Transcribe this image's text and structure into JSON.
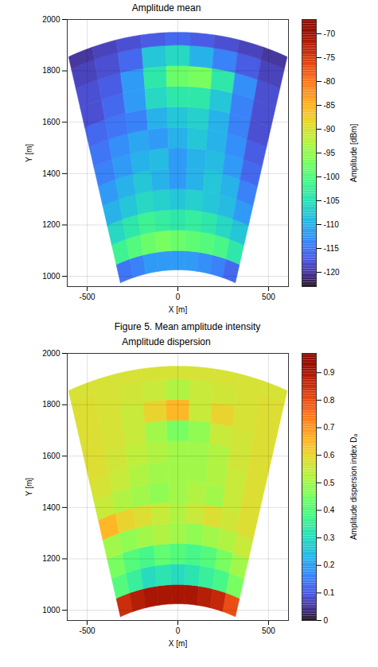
{
  "chart_data": [
    {
      "type": "heatmap",
      "title": "Amplitude mean",
      "caption": "Figure 5. Mean amplitude intensity",
      "xlabel": "X [m]",
      "ylabel": "Y [m]",
      "xlim": [
        -610,
        610
      ],
      "ylim": [
        960,
        2000
      ],
      "xticks": [
        -500,
        0,
        500
      ],
      "yticks": [
        1000,
        1200,
        1400,
        1600,
        1800,
        2000
      ],
      "grid": true,
      "color": "turbo",
      "range_edges": [
        1025,
        1100,
        1180,
        1260,
        1340,
        1420,
        1500,
        1580,
        1660,
        1740,
        1820,
        1900,
        1950
      ],
      "azimuth_edges": [
        -18,
        -14,
        -10,
        -6,
        -2,
        2,
        6,
        10,
        14,
        18
      ],
      "cells": [
        [
          -115,
          -114,
          -112,
          -112,
          -112,
          -112,
          -113,
          -114,
          -116
        ],
        [
          -102,
          -100,
          -98,
          -97,
          -98,
          -99,
          -100,
          -101,
          -104
        ],
        [
          -106,
          -104,
          -102,
          -103,
          -104,
          -103,
          -104,
          -106,
          -108
        ],
        [
          -110,
          -108,
          -106,
          -107,
          -108,
          -107,
          -108,
          -109,
          -112
        ],
        [
          -112,
          -110,
          -108,
          -110,
          -112,
          -110,
          -108,
          -110,
          -114
        ],
        [
          -114,
          -112,
          -110,
          -109,
          -112,
          -110,
          -109,
          -112,
          -116
        ],
        [
          -115,
          -113,
          -111,
          -112,
          -110,
          -108,
          -110,
          -113,
          -117
        ],
        [
          -116,
          -115,
          -114,
          -110,
          -108,
          -107,
          -110,
          -114,
          -118
        ],
        [
          -118,
          -116,
          -112,
          -106,
          -104,
          -104,
          -108,
          -114,
          -118
        ],
        [
          -118,
          -117,
          -112,
          -104,
          -98,
          -97,
          -104,
          -113,
          -118
        ],
        [
          -119,
          -118,
          -116,
          -108,
          -106,
          -110,
          -114,
          -117,
          -119
        ],
        [
          -120,
          -119,
          -118,
          -117,
          -116,
          -117,
          -118,
          -119,
          -120
        ]
      ],
      "clabel": "Amplitude [dBm]",
      "clim": [
        -123,
        -67
      ],
      "cticks": [
        -120,
        -115,
        -110,
        -105,
        -100,
        -95,
        -90,
        -85,
        -80,
        -75,
        -70
      ]
    },
    {
      "type": "heatmap",
      "title": "Amplitude dispersion",
      "xlabel": "X [m]",
      "ylabel": "Y [m]",
      "xlim": [
        -610,
        610
      ],
      "ylim": [
        960,
        2000
      ],
      "xticks": [
        -500,
        0,
        500
      ],
      "yticks": [
        1000,
        1200,
        1400,
        1600,
        1800,
        2000
      ],
      "grid": true,
      "color": "turbo",
      "range_edges": [
        1025,
        1100,
        1180,
        1260,
        1340,
        1420,
        1500,
        1580,
        1660,
        1740,
        1820,
        1900,
        1950
      ],
      "azimuth_edges": [
        -18,
        -14,
        -10,
        -6,
        -2,
        2,
        6,
        10,
        14,
        18
      ],
      "cells": [
        [
          0.85,
          0.88,
          0.9,
          0.9,
          0.9,
          0.9,
          0.88,
          0.86,
          0.8
        ],
        [
          0.4,
          0.35,
          0.3,
          0.32,
          0.3,
          0.32,
          0.35,
          0.38,
          0.45
        ],
        [
          0.45,
          0.4,
          0.38,
          0.42,
          0.4,
          0.38,
          0.4,
          0.45,
          0.5
        ],
        [
          0.5,
          0.48,
          0.5,
          0.52,
          0.5,
          0.48,
          0.5,
          0.52,
          0.55
        ],
        [
          0.65,
          0.6,
          0.58,
          0.55,
          0.52,
          0.55,
          0.58,
          0.56,
          0.58
        ],
        [
          0.55,
          0.52,
          0.5,
          0.48,
          0.5,
          0.52,
          0.5,
          0.55,
          0.58
        ],
        [
          0.57,
          0.55,
          0.52,
          0.5,
          0.5,
          0.5,
          0.52,
          0.55,
          0.58
        ],
        [
          0.58,
          0.56,
          0.54,
          0.52,
          0.5,
          0.5,
          0.52,
          0.56,
          0.58
        ],
        [
          0.58,
          0.57,
          0.55,
          0.5,
          0.45,
          0.48,
          0.55,
          0.56,
          0.58
        ],
        [
          0.58,
          0.57,
          0.55,
          0.6,
          0.65,
          0.55,
          0.6,
          0.57,
          0.58
        ],
        [
          0.58,
          0.57,
          0.56,
          0.55,
          0.52,
          0.55,
          0.56,
          0.57,
          0.58
        ],
        [
          0.57,
          0.57,
          0.57,
          0.57,
          0.57,
          0.57,
          0.57,
          0.57,
          0.57
        ]
      ],
      "clabel": "Amplitude dispersion index Dₐ",
      "clim": [
        0,
        0.97
      ],
      "cticks": [
        0,
        0.1,
        0.2,
        0.3,
        0.4,
        0.5,
        0.6,
        0.7,
        0.8,
        0.9
      ]
    }
  ]
}
